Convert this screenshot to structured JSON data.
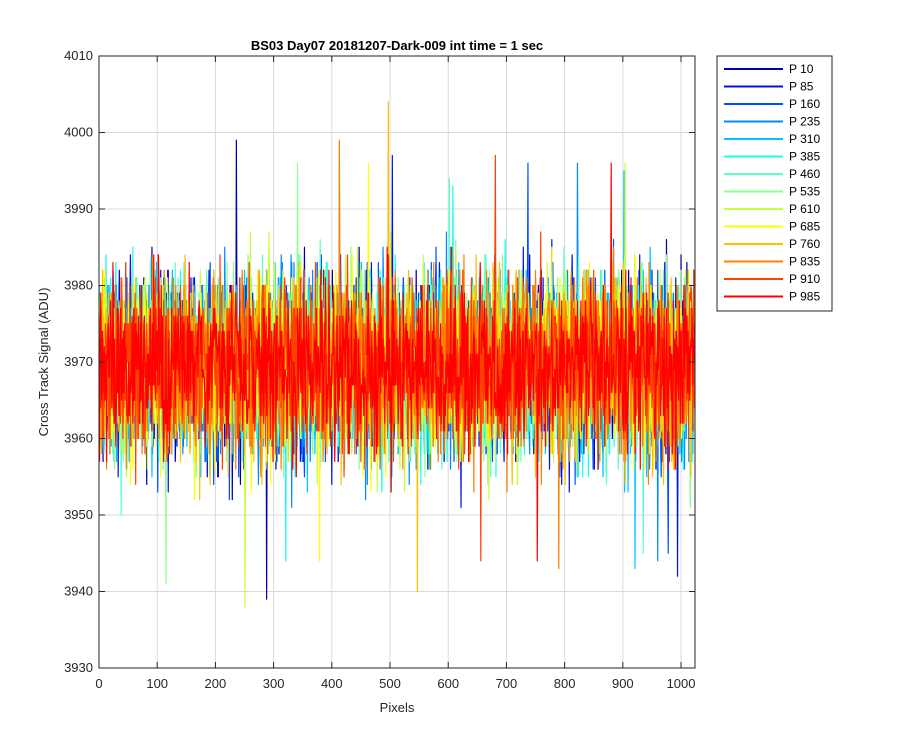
{
  "chart_data": {
    "type": "line",
    "title": "BS03 Day07 20181207-Dark-009 int time = 1 sec",
    "xlabel": "Pixels",
    "ylabel": "Cross Track Signal (ADU)",
    "xlim": [
      0,
      1024
    ],
    "ylim": [
      3930,
      4010
    ],
    "x_ticks": [
      0,
      100,
      200,
      300,
      400,
      500,
      600,
      700,
      800,
      900,
      1000
    ],
    "y_ticks": [
      3930,
      3940,
      3950,
      3960,
      3970,
      3980,
      3990,
      4000,
      4010
    ],
    "grid": true,
    "legend_position": "outside-right-top",
    "x_start": 1,
    "x_end": 1024,
    "series": [
      {
        "name": "P 10",
        "color": "#0000A8",
        "mean": 3969.5,
        "spread": 7.2,
        "min": 3939,
        "max": 3999
      },
      {
        "name": "P 85",
        "color": "#0014E0",
        "mean": 3969.5,
        "spread": 7.0,
        "min": 3942,
        "max": 3997
      },
      {
        "name": "P 160",
        "color": "#0050FF",
        "mean": 3969.5,
        "spread": 7.0,
        "min": 3945,
        "max": 3996
      },
      {
        "name": "P 235",
        "color": "#008CFF",
        "mean": 3969.5,
        "spread": 7.0,
        "min": 3944,
        "max": 3996
      },
      {
        "name": "P 310",
        "color": "#00C4FF",
        "mean": 3969.5,
        "spread": 7.0,
        "min": 3943,
        "max": 3995
      },
      {
        "name": "P 385",
        "color": "#14FFEB",
        "mean": 3969.5,
        "spread": 7.0,
        "min": 3944,
        "max": 3993
      },
      {
        "name": "P 460",
        "color": "#5CFFC8",
        "mean": 3969.5,
        "spread": 7.0,
        "min": 3945,
        "max": 3994
      },
      {
        "name": "P 535",
        "color": "#8CFF8C",
        "mean": 3969.5,
        "spread": 7.0,
        "min": 3941,
        "max": 3996
      },
      {
        "name": "P 610",
        "color": "#C8FF3C",
        "mean": 3969.5,
        "spread": 7.0,
        "min": 3938,
        "max": 3996
      },
      {
        "name": "P 685",
        "color": "#FFFF00",
        "mean": 3969.5,
        "spread": 7.0,
        "min": 3944,
        "max": 3996
      },
      {
        "name": "P 760",
        "color": "#FFC000",
        "mean": 3969.5,
        "spread": 7.0,
        "min": 3940,
        "max": 4004
      },
      {
        "name": "P 835",
        "color": "#FF8000",
        "mean": 3969.5,
        "spread": 7.0,
        "min": 3943,
        "max": 3999
      },
      {
        "name": "P 910",
        "color": "#FF4000",
        "mean": 3969.5,
        "spread": 6.8,
        "min": 3944,
        "max": 3997
      },
      {
        "name": "P 985",
        "color": "#FF0000",
        "mean": 3969.5,
        "spread": 6.5,
        "min": 3944,
        "max": 3996
      }
    ]
  }
}
